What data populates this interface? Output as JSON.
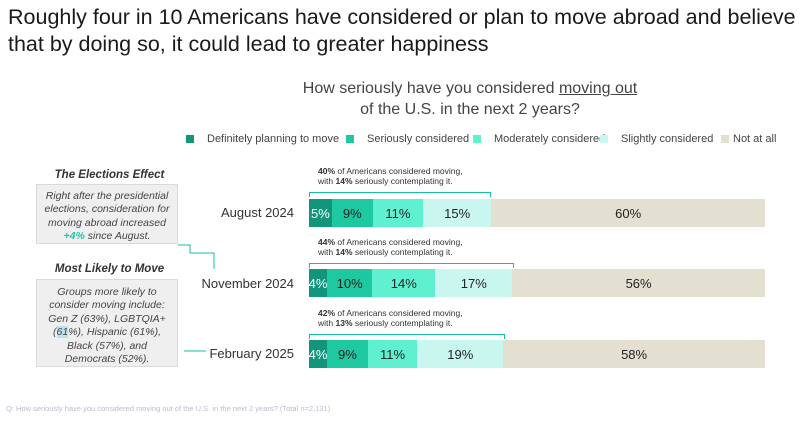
{
  "headline": "Roughly four in 10 Americans have considered or plan to move abroad and believe that by doing so, it could lead to greater happiness",
  "chart_data": {
    "type": "stacked-bar-horizontal",
    "title_part1": "How seriously have you considered ",
    "title_underlined": "moving out",
    "title_part2": "of the U.S. in the next 2 years?",
    "legend_position": "top",
    "series": [
      {
        "name": "Definitely planning to move",
        "color": "#11967c",
        "text_color": "#ffffff"
      },
      {
        "name": "Seriously considered",
        "color": "#1ec9a2",
        "text_color": "#222222"
      },
      {
        "name": "Moderately considered",
        "color": "#5ff0d0",
        "text_color": "#222222"
      },
      {
        "name": "Slightly considered",
        "color": "#c9f7ef",
        "text_color": "#222222"
      },
      {
        "name": "Not at all",
        "color": "#e3dfd1",
        "text_color": "#222222"
      }
    ],
    "categories": [
      "August 2024",
      "November 2024",
      "February 2025"
    ],
    "rows": [
      {
        "label": "August 2024",
        "values": [
          5,
          9,
          11,
          15,
          60
        ],
        "labels": [
          "5%",
          "9%",
          "11%",
          "15%",
          "60%"
        ],
        "annot_pct": "40%",
        "annot_text1": " of Americans considered moving,",
        "annot_pre2": "with ",
        "annot_pct2": "14%",
        "annot_text2": " seriously contemplating it."
      },
      {
        "label": "November 2024",
        "values": [
          4,
          10,
          14,
          17,
          56
        ],
        "labels": [
          "4%",
          "10%",
          "14%",
          "17%",
          "56%"
        ],
        "annot_pct": "44%",
        "annot_text1": " of Americans considered moving,",
        "annot_pre2": "with ",
        "annot_pct2": "14%",
        "annot_text2": " seriously contemplating it."
      },
      {
        "label": "February 2025",
        "values": [
          4,
          9,
          11,
          19,
          58
        ],
        "labels": [
          "4%",
          "9%",
          "11%",
          "19%",
          "58%"
        ],
        "annot_pct": "42%",
        "annot_text1": " of Americans considered moving,",
        "annot_pre2": "with ",
        "annot_pct2": "13%",
        "annot_text2": " seriously contemplating it."
      }
    ],
    "xlim": [
      0,
      100
    ]
  },
  "sidebar": {
    "elections_title": "The Elections Effect",
    "elections_text1": "Right after the presidential elections, consideration for moving abroad increased",
    "elections_highlight": "+4%",
    "elections_text2": " since August.",
    "likely_title": "Most Likely to Move",
    "likely_text1": "Groups more likely to consider moving include: Gen Z (63%), LGBTQIA+ (",
    "likely_mark": "61",
    "likely_text2": "%), Hispanic (61%), Black (57%), and Democrats (52%)."
  },
  "footnote": "Q: How seriously have you considered moving out of the U.S. in the next 2 years? (Total n=2,131)"
}
